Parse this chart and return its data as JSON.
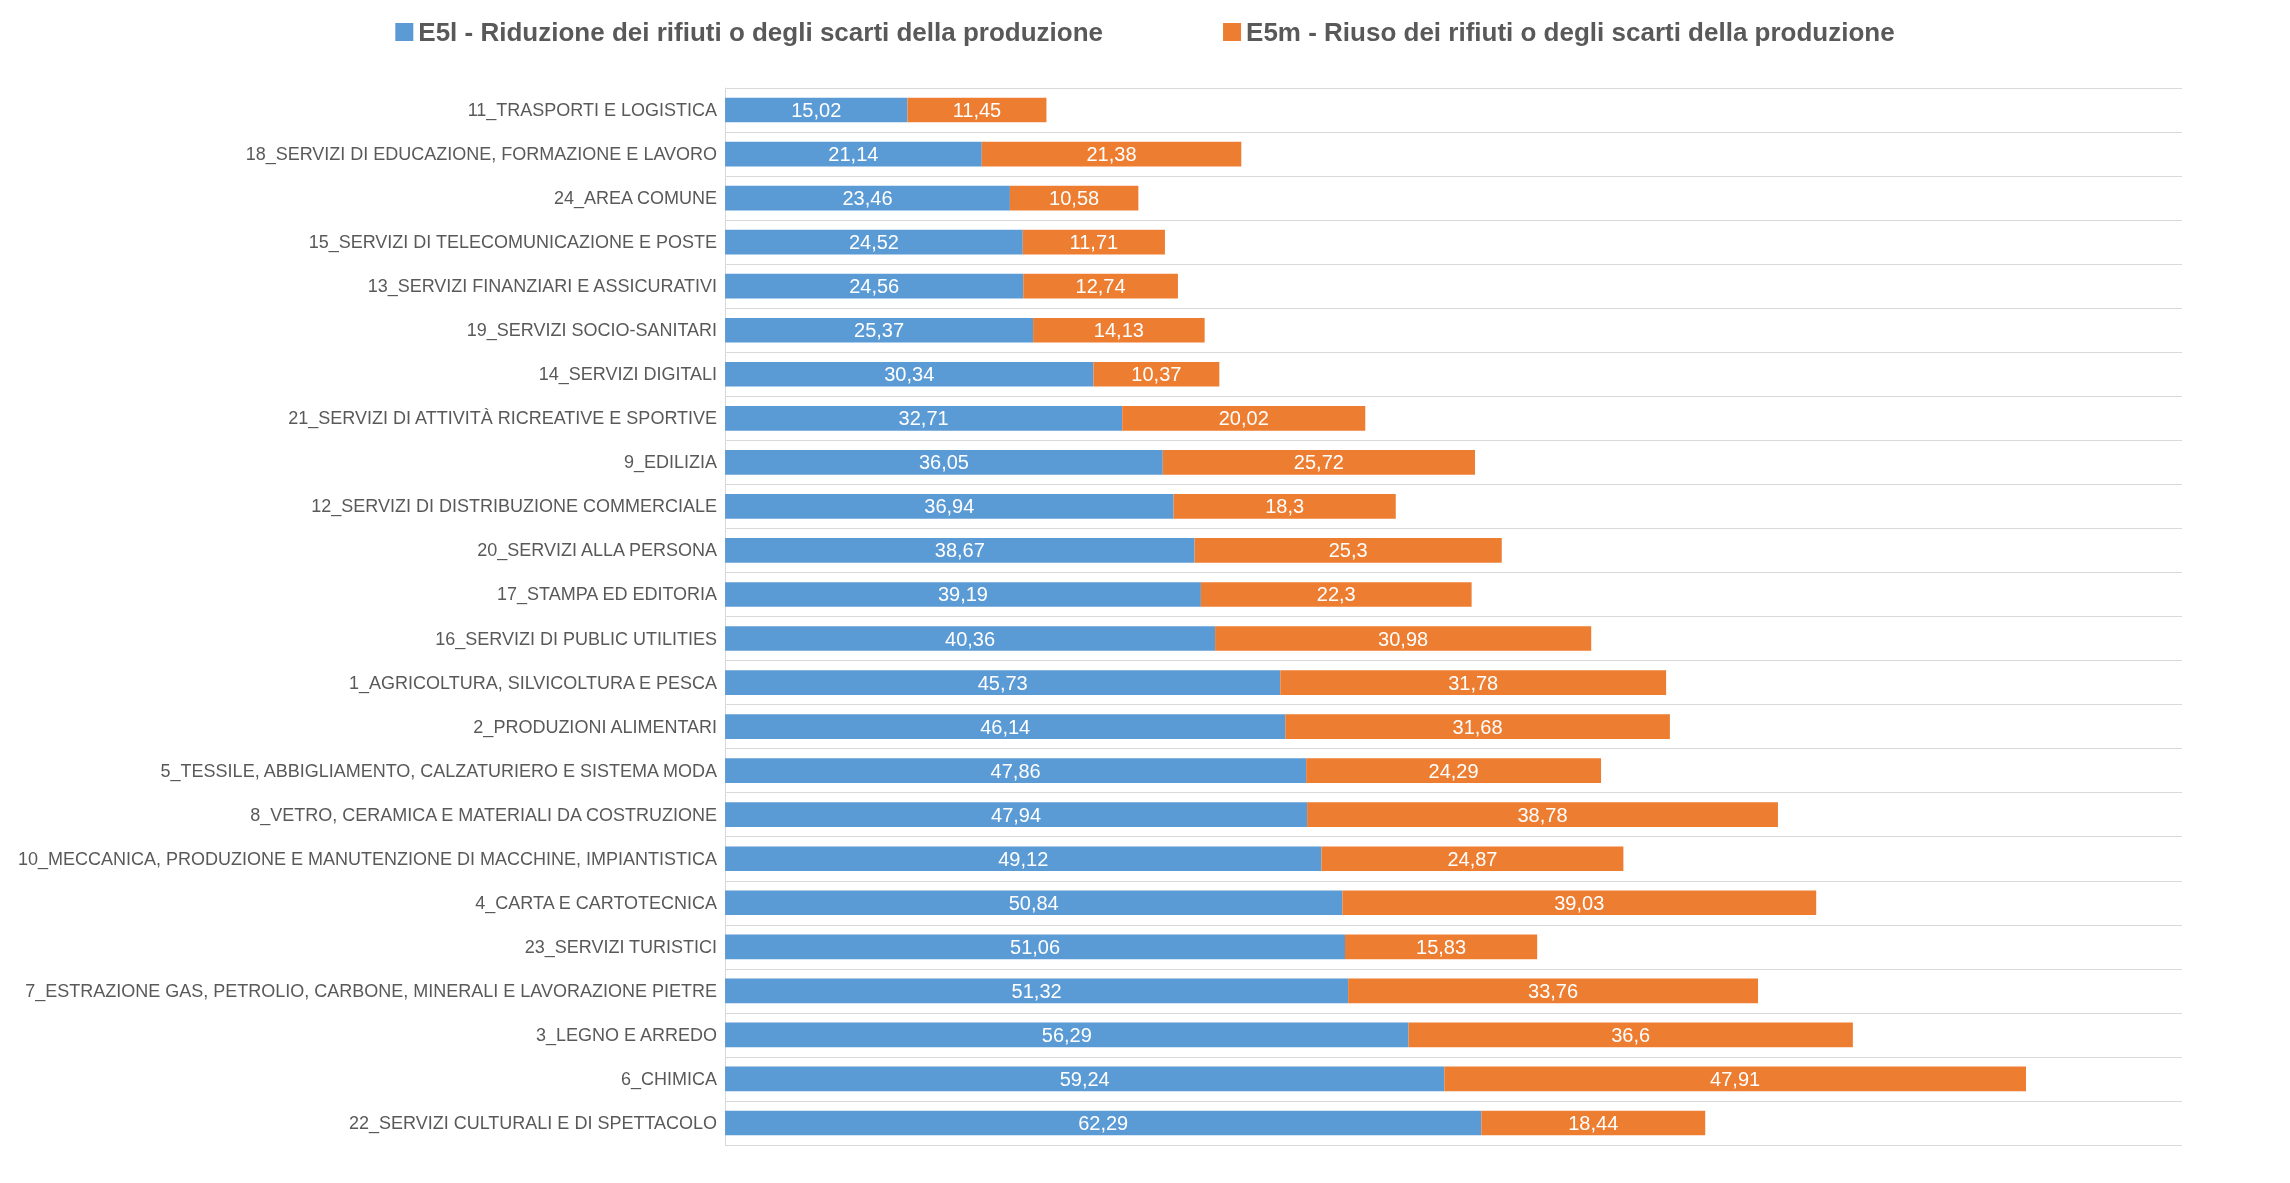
{
  "chart_data": {
    "type": "bar",
    "orientation": "horizontal",
    "stacked": true,
    "grid": "y",
    "legend": "top",
    "categories": [
      "11_TRASPORTI E LOGISTICA",
      "18_SERVIZI DI EDUCAZIONE, FORMAZIONE E LAVORO",
      "24_AREA COMUNE",
      "15_SERVIZI DI TELECOMUNICAZIONE E POSTE",
      "13_SERVIZI FINANZIARI E ASSICURATIVI",
      "19_SERVIZI SOCIO-SANITARI",
      "14_SERVIZI DIGITALI",
      "21_SERVIZI DI ATTIVITÀ RICREATIVE E SPORTIVE",
      "9_EDILIZIA",
      "12_SERVIZI DI DISTRIBUZIONE COMMERCIALE",
      "20_SERVIZI ALLA PERSONA",
      "17_STAMPA ED EDITORIA",
      "16_SERVIZI DI PUBLIC UTILITIES",
      "1_AGRICOLTURA, SILVICOLTURA E PESCA",
      "2_PRODUZIONI ALIMENTARI",
      "5_TESSILE, ABBIGLIAMENTO, CALZATURIERO E SISTEMA MODA",
      "8_VETRO, CERAMICA E MATERIALI DA COSTRUZIONE",
      "10_MECCANICA, PRODUZIONE E MANUTENZIONE DI MACCHINE, IMPIANTISTICA",
      "4_CARTA E CARTOTECNICA",
      "23_SERVIZI TURISTICI",
      "7_ESTRAZIONE GAS, PETROLIO, CARBONE, MINERALI E LAVORAZIONE PIETRE",
      "3_LEGNO E ARREDO",
      "6_CHIMICA",
      "22_SERVIZI CULTURALI E DI SPETTACOLO"
    ],
    "series": [
      {
        "name": "E5l - Riduzione dei rifiuti o degli scarti della produzione",
        "color": "#5b9bd5",
        "values": [
          15.02,
          21.14,
          23.46,
          24.52,
          24.56,
          25.37,
          30.34,
          32.71,
          36.05,
          36.94,
          38.67,
          39.19,
          40.36,
          45.73,
          46.14,
          47.86,
          47.94,
          49.12,
          50.84,
          51.06,
          51.32,
          56.29,
          59.24,
          62.29
        ],
        "value_labels": [
          "15,02",
          "21,14",
          "23,46",
          "24,52",
          "24,56",
          "25,37",
          "30,34",
          "32,71",
          "36,05",
          "36,94",
          "38,67",
          "39,19",
          "40,36",
          "45,73",
          "46,14",
          "47,86",
          "47,94",
          "49,12",
          "50,84",
          "51,06",
          "51,32",
          "56,29",
          "59,24",
          "62,29"
        ]
      },
      {
        "name": "E5m - Riuso dei rifiuti o degli scarti della produzione",
        "color": "#ed7d31",
        "values": [
          11.45,
          21.38,
          10.58,
          11.71,
          12.74,
          14.13,
          10.37,
          20.02,
          25.72,
          18.3,
          25.3,
          22.3,
          30.98,
          31.78,
          31.68,
          24.29,
          38.78,
          24.87,
          39.03,
          15.83,
          33.76,
          36.6,
          47.91,
          18.44
        ],
        "value_labels": [
          "11,45",
          "21,38",
          "10,58",
          "11,71",
          "12,74",
          "14,13",
          "10,37",
          "20,02",
          "25,72",
          "18,3",
          "25,3",
          "22,3",
          "30,98",
          "31,78",
          "31,68",
          "24,29",
          "38,78",
          "24,87",
          "39,03",
          "15,83",
          "33,76",
          "36,6",
          "47,91",
          "18,44"
        ]
      }
    ]
  }
}
